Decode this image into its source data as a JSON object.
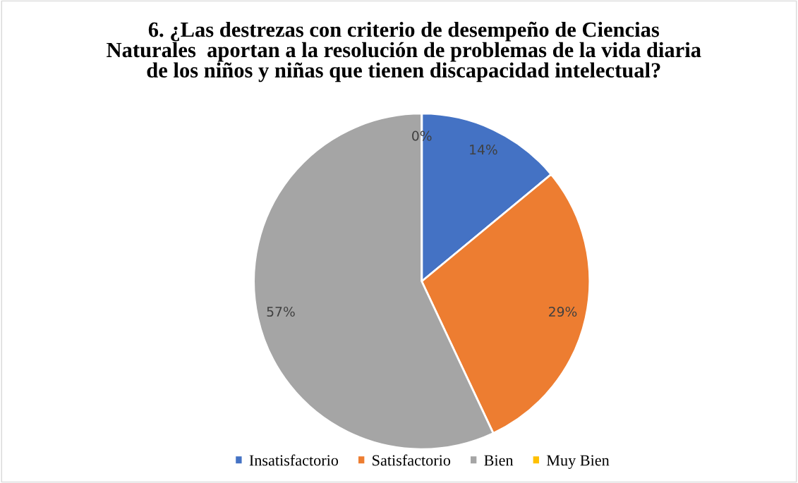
{
  "chart_data": {
    "type": "pie",
    "title": "6. ¿Las destrezas con criterio de desempeño de Ciencias\nNaturales  aportan a la resolución de problemas de la vida diaria\nde los niños y niñas que tienen discapacidad intelectual?",
    "categories": [
      "Insatisfactorio",
      "Satisfactorio",
      "Bien",
      "Muy Bien"
    ],
    "values": [
      14,
      29,
      57,
      0
    ],
    "colors": [
      "#4472c4",
      "#ed7d31",
      "#a5a5a5",
      "#ffc000"
    ],
    "value_labels": [
      "14%",
      "29%",
      "57%",
      "0%"
    ],
    "legend": "bottom"
  }
}
